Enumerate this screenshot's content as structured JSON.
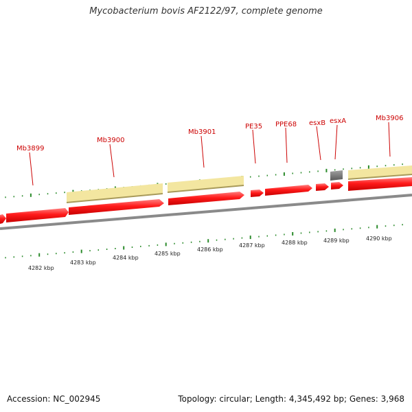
{
  "title": "Mycobacterium bovis AF2122/97, complete genome",
  "footer": {
    "accession": "Accession: NC_002945",
    "stats": "Topology: circular; Length: 4,345,492 bp; Genes: 3,968"
  },
  "colors": {
    "cds": "#ff0000",
    "gene_bar": "#f3e6a0",
    "gene_bar_edge": "#a89a5a",
    "backbone": "#808080",
    "tick": "#2a8a2a",
    "label": "#cc0000",
    "rna": "#707070"
  },
  "gene_labels": [
    {
      "id": "mb3899",
      "text": "Mb3899"
    },
    {
      "id": "mb3900",
      "text": "Mb3900"
    },
    {
      "id": "mb3901",
      "text": "Mb3901"
    },
    {
      "id": "pe35",
      "text": "PE35"
    },
    {
      "id": "ppe68",
      "text": "PPE68"
    },
    {
      "id": "esxb",
      "text": "esxB"
    },
    {
      "id": "esxa",
      "text": "esxA"
    },
    {
      "id": "mb3906",
      "text": "Mb3906"
    }
  ],
  "kbp_labels": [
    {
      "id": "4282",
      "text": "4282 kbp"
    },
    {
      "id": "4283",
      "text": "4283 kbp"
    },
    {
      "id": "4284",
      "text": "4284 kbp"
    },
    {
      "id": "4285",
      "text": "4285 kbp"
    },
    {
      "id": "4286",
      "text": "4286 kbp"
    },
    {
      "id": "4287",
      "text": "4287 kbp"
    },
    {
      "id": "4288",
      "text": "4288 kbp"
    },
    {
      "id": "4289",
      "text": "4289 kbp"
    },
    {
      "id": "4290",
      "text": "4290 kbp"
    }
  ]
}
